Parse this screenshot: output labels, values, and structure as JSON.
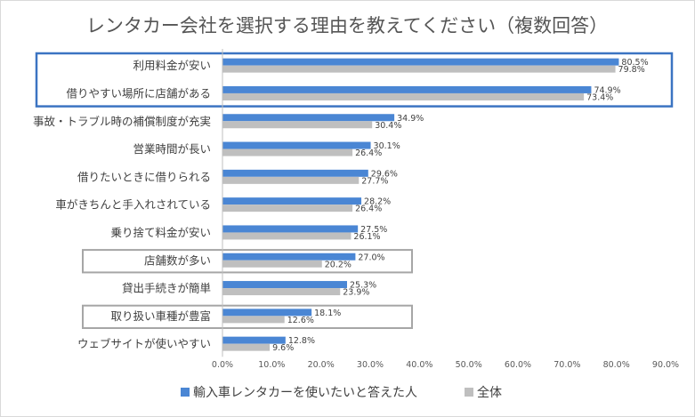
{
  "colors": {
    "series_import": "#4a86d4",
    "series_all": "#bfbfbf",
    "highlight_blue": "#3b74c2",
    "highlight_gray": "#a6a6a6",
    "border": "#d9d9d9"
  },
  "chart_data": {
    "type": "bar",
    "orientation": "horizontal",
    "title": "レンタカー会社を選択する理由を教えてください（複数回答）",
    "categories": [
      "利用料金が安い",
      "借りやすい場所に店舗がある",
      "事故・トラブル時の補償制度が充実",
      "営業時間が長い",
      "借りたいときに借りられる",
      "車がきちんと手入れされている",
      "乗り捨て料金が安い",
      "店舗数が多い",
      "貸出手続きが簡単",
      "取り扱い車種が豊富",
      "ウェブサイトが使いやすい"
    ],
    "series": [
      {
        "name": "輸入車レンタカーを使いたいと答えた人",
        "values": [
          80.5,
          74.9,
          34.9,
          30.1,
          29.6,
          28.2,
          27.5,
          27.0,
          25.3,
          18.1,
          12.8
        ],
        "labels": [
          "80.5%",
          "74.9%",
          "34.9%",
          "30.1%",
          "29.6%",
          "28.2%",
          "27.5%",
          "27.0%",
          "25.3%",
          "18.1%",
          "12.8%"
        ]
      },
      {
        "name": "全体",
        "values": [
          79.8,
          73.4,
          30.4,
          26.4,
          27.7,
          26.4,
          26.1,
          20.2,
          23.9,
          12.6,
          9.6
        ],
        "labels": [
          "79.8%",
          "73.4%",
          "30.4%",
          "26.4%",
          "27.7%",
          "26.4%",
          "26.1%",
          "20.2%",
          "23.9%",
          "12.6%",
          "9.6%"
        ]
      }
    ],
    "xlim": [
      0,
      90
    ],
    "xticks": [
      "0.0%",
      "10.0%",
      "20.0%",
      "30.0%",
      "40.0%",
      "50.0%",
      "60.0%",
      "70.0%",
      "80.0%",
      "90.0%"
    ],
    "grid": false,
    "legend_position": "bottom-left",
    "highlights": [
      {
        "style": "blue",
        "categories": [
          "利用料金が安い",
          "借りやすい場所に店舗がある"
        ]
      },
      {
        "style": "gray",
        "categories": [
          "店舗数が多い"
        ]
      },
      {
        "style": "gray",
        "categories": [
          "取り扱い車種が豊富"
        ]
      }
    ]
  }
}
